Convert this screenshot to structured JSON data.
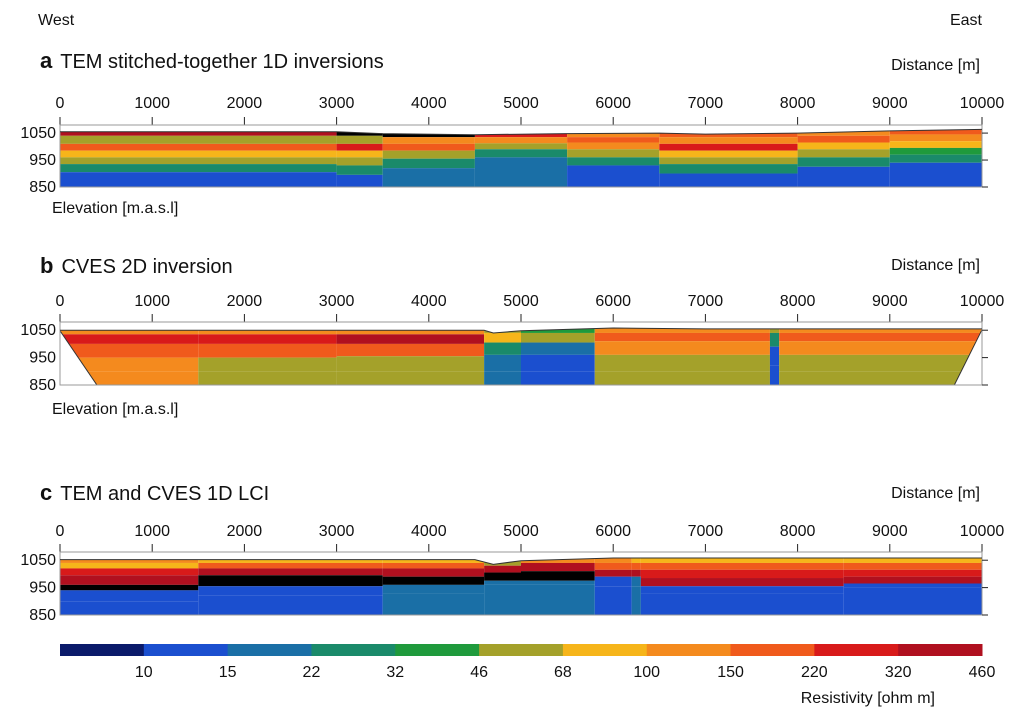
{
  "header": {
    "west": "West",
    "east": "East"
  },
  "chart_data": [
    {
      "type": "heatmap",
      "letter": "a",
      "title": "TEM stitched-together 1D inversions",
      "xlabel": "Distance [m]",
      "ylabel": "Elevation [m.a.s.l]",
      "xlim": [
        0,
        10000
      ],
      "xticks": [
        0,
        1000,
        2000,
        3000,
        4000,
        5000,
        6000,
        7000,
        8000,
        9000,
        10000
      ],
      "ylim": [
        850,
        1080
      ],
      "yticks": [
        1050,
        950,
        850
      ],
      "surface": [
        [
          0,
          1055
        ],
        [
          3000,
          1055
        ],
        [
          3500,
          1048
        ],
        [
          4500,
          1044
        ],
        [
          5500,
          1048
        ],
        [
          6500,
          1050
        ],
        [
          7000,
          1046
        ],
        [
          8000,
          1050
        ],
        [
          9000,
          1058
        ],
        [
          10000,
          1064
        ]
      ],
      "profiles": [
        {
          "x": [
            0,
            3000
          ],
          "layers": [
            [
              1040,
              320
            ],
            [
              1010,
              46
            ],
            [
              985,
              150
            ],
            [
              960,
              68
            ],
            [
              935,
              46
            ],
            [
              905,
              22
            ],
            [
              850,
              10
            ]
          ]
        },
        {
          "x": [
            3000,
            3500
          ],
          "layers": [
            [
              1040,
              460
            ],
            [
              1010,
              46
            ],
            [
              985,
              220
            ],
            [
              960,
              68
            ],
            [
              930,
              46
            ],
            [
              895,
              22
            ],
            [
              850,
              10
            ]
          ]
        },
        {
          "x": [
            3500,
            4500
          ],
          "layers": [
            [
              1035,
              460
            ],
            [
              1010,
              100
            ],
            [
              985,
              150
            ],
            [
              955,
              46
            ],
            [
              920,
              22
            ],
            [
              850,
              15
            ]
          ]
        },
        {
          "x": [
            4500,
            5500
          ],
          "layers": [
            [
              1035,
              220
            ],
            [
              1012,
              100
            ],
            [
              990,
              46
            ],
            [
              960,
              22
            ],
            [
              850,
              15
            ]
          ]
        },
        {
          "x": [
            5500,
            6500
          ],
          "layers": [
            [
              1035,
              100
            ],
            [
              1015,
              150
            ],
            [
              990,
              100
            ],
            [
              960,
              46
            ],
            [
              930,
              22
            ],
            [
              850,
              10
            ]
          ]
        },
        {
          "x": [
            6500,
            8000
          ],
          "layers": [
            [
              1035,
              150
            ],
            [
              1010,
              100
            ],
            [
              985,
              220
            ],
            [
              960,
              68
            ],
            [
              935,
              46
            ],
            [
              900,
              22
            ],
            [
              850,
              10
            ]
          ]
        },
        {
          "x": [
            8000,
            9000
          ],
          "layers": [
            [
              1040,
              100
            ],
            [
              1015,
              150
            ],
            [
              990,
              68
            ],
            [
              960,
              46
            ],
            [
              925,
              22
            ],
            [
              850,
              10
            ]
          ]
        },
        {
          "x": [
            9000,
            10000
          ],
          "layers": [
            [
              1045,
              150
            ],
            [
              1020,
              100
            ],
            [
              995,
              68
            ],
            [
              970,
              32
            ],
            [
              940,
              22
            ],
            [
              850,
              10
            ]
          ]
        }
      ]
    },
    {
      "type": "heatmap",
      "letter": "b",
      "title": "CVES 2D inversion",
      "xlabel": "Distance [m]",
      "ylabel": "Elevation [m.a.s.l]",
      "xlim": [
        0,
        10000
      ],
      "xticks": [
        0,
        1000,
        2000,
        3000,
        4000,
        5000,
        6000,
        7000,
        8000,
        9000,
        10000
      ],
      "ylim": [
        850,
        1080
      ],
      "yticks": [
        1050,
        950,
        850
      ],
      "surface": [
        [
          0,
          1050
        ],
        [
          4600,
          1050
        ],
        [
          4700,
          1040
        ],
        [
          5000,
          1048
        ],
        [
          6000,
          1058
        ],
        [
          7000,
          1055
        ],
        [
          9000,
          1055
        ],
        [
          10000,
          1055
        ]
      ],
      "data_extent": [
        400,
        9700
      ],
      "profiles": [
        {
          "x": [
            0,
            1500
          ],
          "layers": [
            [
              1035,
              100
            ],
            [
              1000,
              220
            ],
            [
              950,
              150
            ],
            [
              900,
              100
            ]
          ]
        },
        {
          "x": [
            1500,
            3000
          ],
          "layers": [
            [
              1035,
              100
            ],
            [
              1000,
              220
            ],
            [
              950,
              150
            ],
            [
              900,
              46
            ]
          ]
        },
        {
          "x": [
            3000,
            4600
          ],
          "layers": [
            [
              1035,
              100
            ],
            [
              1000,
              320
            ],
            [
              955,
              150
            ],
            [
              900,
              46
            ]
          ]
        },
        {
          "x": [
            4600,
            5000
          ],
          "layers": [
            [
              1040,
              46
            ],
            [
              1005,
              68
            ],
            [
              960,
              22
            ],
            [
              900,
              15
            ]
          ]
        },
        {
          "x": [
            5000,
            5800
          ],
          "layers": [
            [
              1040,
              32
            ],
            [
              1005,
              46
            ],
            [
              960,
              15
            ],
            [
              900,
              10
            ]
          ]
        },
        {
          "x": [
            5800,
            7700
          ],
          "layers": [
            [
              1040,
              100
            ],
            [
              1010,
              150
            ],
            [
              960,
              100
            ],
            [
              900,
              46
            ]
          ]
        },
        {
          "x": [
            7700,
            7800
          ],
          "layers": [
            [
              1040,
              46
            ],
            [
              990,
              22
            ],
            [
              920,
              10
            ]
          ]
        },
        {
          "x": [
            7800,
            10000
          ],
          "layers": [
            [
              1040,
              100
            ],
            [
              1010,
              150
            ],
            [
              960,
              100
            ],
            [
              900,
              46
            ]
          ]
        }
      ]
    },
    {
      "type": "heatmap",
      "letter": "c",
      "title": "TEM and CVES 1D LCI",
      "xlabel": "Distance [m]",
      "xlim": [
        0,
        10000
      ],
      "xticks": [
        0,
        1000,
        2000,
        3000,
        4000,
        5000,
        6000,
        7000,
        8000,
        9000,
        10000
      ],
      "ylim": [
        850,
        1080
      ],
      "yticks": [
        1050,
        950,
        850
      ],
      "surface": [
        [
          0,
          1052
        ],
        [
          4500,
          1052
        ],
        [
          4700,
          1035
        ],
        [
          5000,
          1048
        ],
        [
          6000,
          1058
        ],
        [
          10000,
          1058
        ]
      ],
      "profiles": [
        {
          "x": [
            0,
            1500
          ],
          "layers": [
            [
              1040,
              100
            ],
            [
              1020,
              68
            ],
            [
              995,
              220
            ],
            [
              960,
              320
            ],
            [
              940,
              460
            ],
            [
              900,
              10
            ]
          ]
        },
        {
          "x": [
            1500,
            3500
          ],
          "layers": [
            [
              1040,
              68
            ],
            [
              1020,
              150
            ],
            [
              995,
              320
            ],
            [
              955,
              460
            ],
            [
              920,
              10
            ]
          ]
        },
        {
          "x": [
            3500,
            4600
          ],
          "layers": [
            [
              1040,
              68
            ],
            [
              1020,
              150
            ],
            [
              990,
              320
            ],
            [
              960,
              460
            ],
            [
              930,
              15
            ]
          ]
        },
        {
          "x": [
            4600,
            5000
          ],
          "layers": [
            [
              1030,
              46
            ],
            [
              1005,
              320
            ],
            [
              975,
              460
            ],
            [
              960,
              15
            ]
          ]
        },
        {
          "x": [
            5000,
            5800
          ],
          "layers": [
            [
              1040,
              100
            ],
            [
              1010,
              320
            ],
            [
              975,
              460
            ],
            [
              960,
              15
            ]
          ]
        },
        {
          "x": [
            5800,
            6200
          ],
          "layers": [
            [
              1040,
              100
            ],
            [
              1015,
              150
            ],
            [
              990,
              320
            ],
            [
              955,
              10
            ]
          ]
        },
        {
          "x": [
            6200,
            6300
          ],
          "layers": [
            [
              1040,
              68
            ],
            [
              1015,
              150
            ],
            [
              990,
              320
            ],
            [
              955,
              15
            ]
          ]
        },
        {
          "x": [
            6300,
            8500
          ],
          "layers": [
            [
              1040,
              68
            ],
            [
              1015,
              150
            ],
            [
              985,
              220
            ],
            [
              955,
              320
            ],
            [
              930,
              10
            ]
          ]
        },
        {
          "x": [
            8500,
            10000
          ],
          "layers": [
            [
              1040,
              68
            ],
            [
              1015,
              150
            ],
            [
              990,
              220
            ],
            [
              965,
              320
            ],
            [
              950,
              10
            ]
          ]
        }
      ]
    }
  ],
  "colorbar": {
    "label": "Resistivity [ohm m]",
    "colors": [
      "#0b1a6a",
      "#1b4fcf",
      "#1a6fa6",
      "#1a8a6a",
      "#1f9a3c",
      "#a4a12a",
      "#f6b51a",
      "#f48a1e",
      "#f05a1c",
      "#d81a1a",
      "#b0101f"
    ],
    "boundaries": [
      "10",
      "15",
      "22",
      "32",
      "46",
      "68",
      "100",
      "150",
      "220",
      "320",
      "460"
    ]
  }
}
